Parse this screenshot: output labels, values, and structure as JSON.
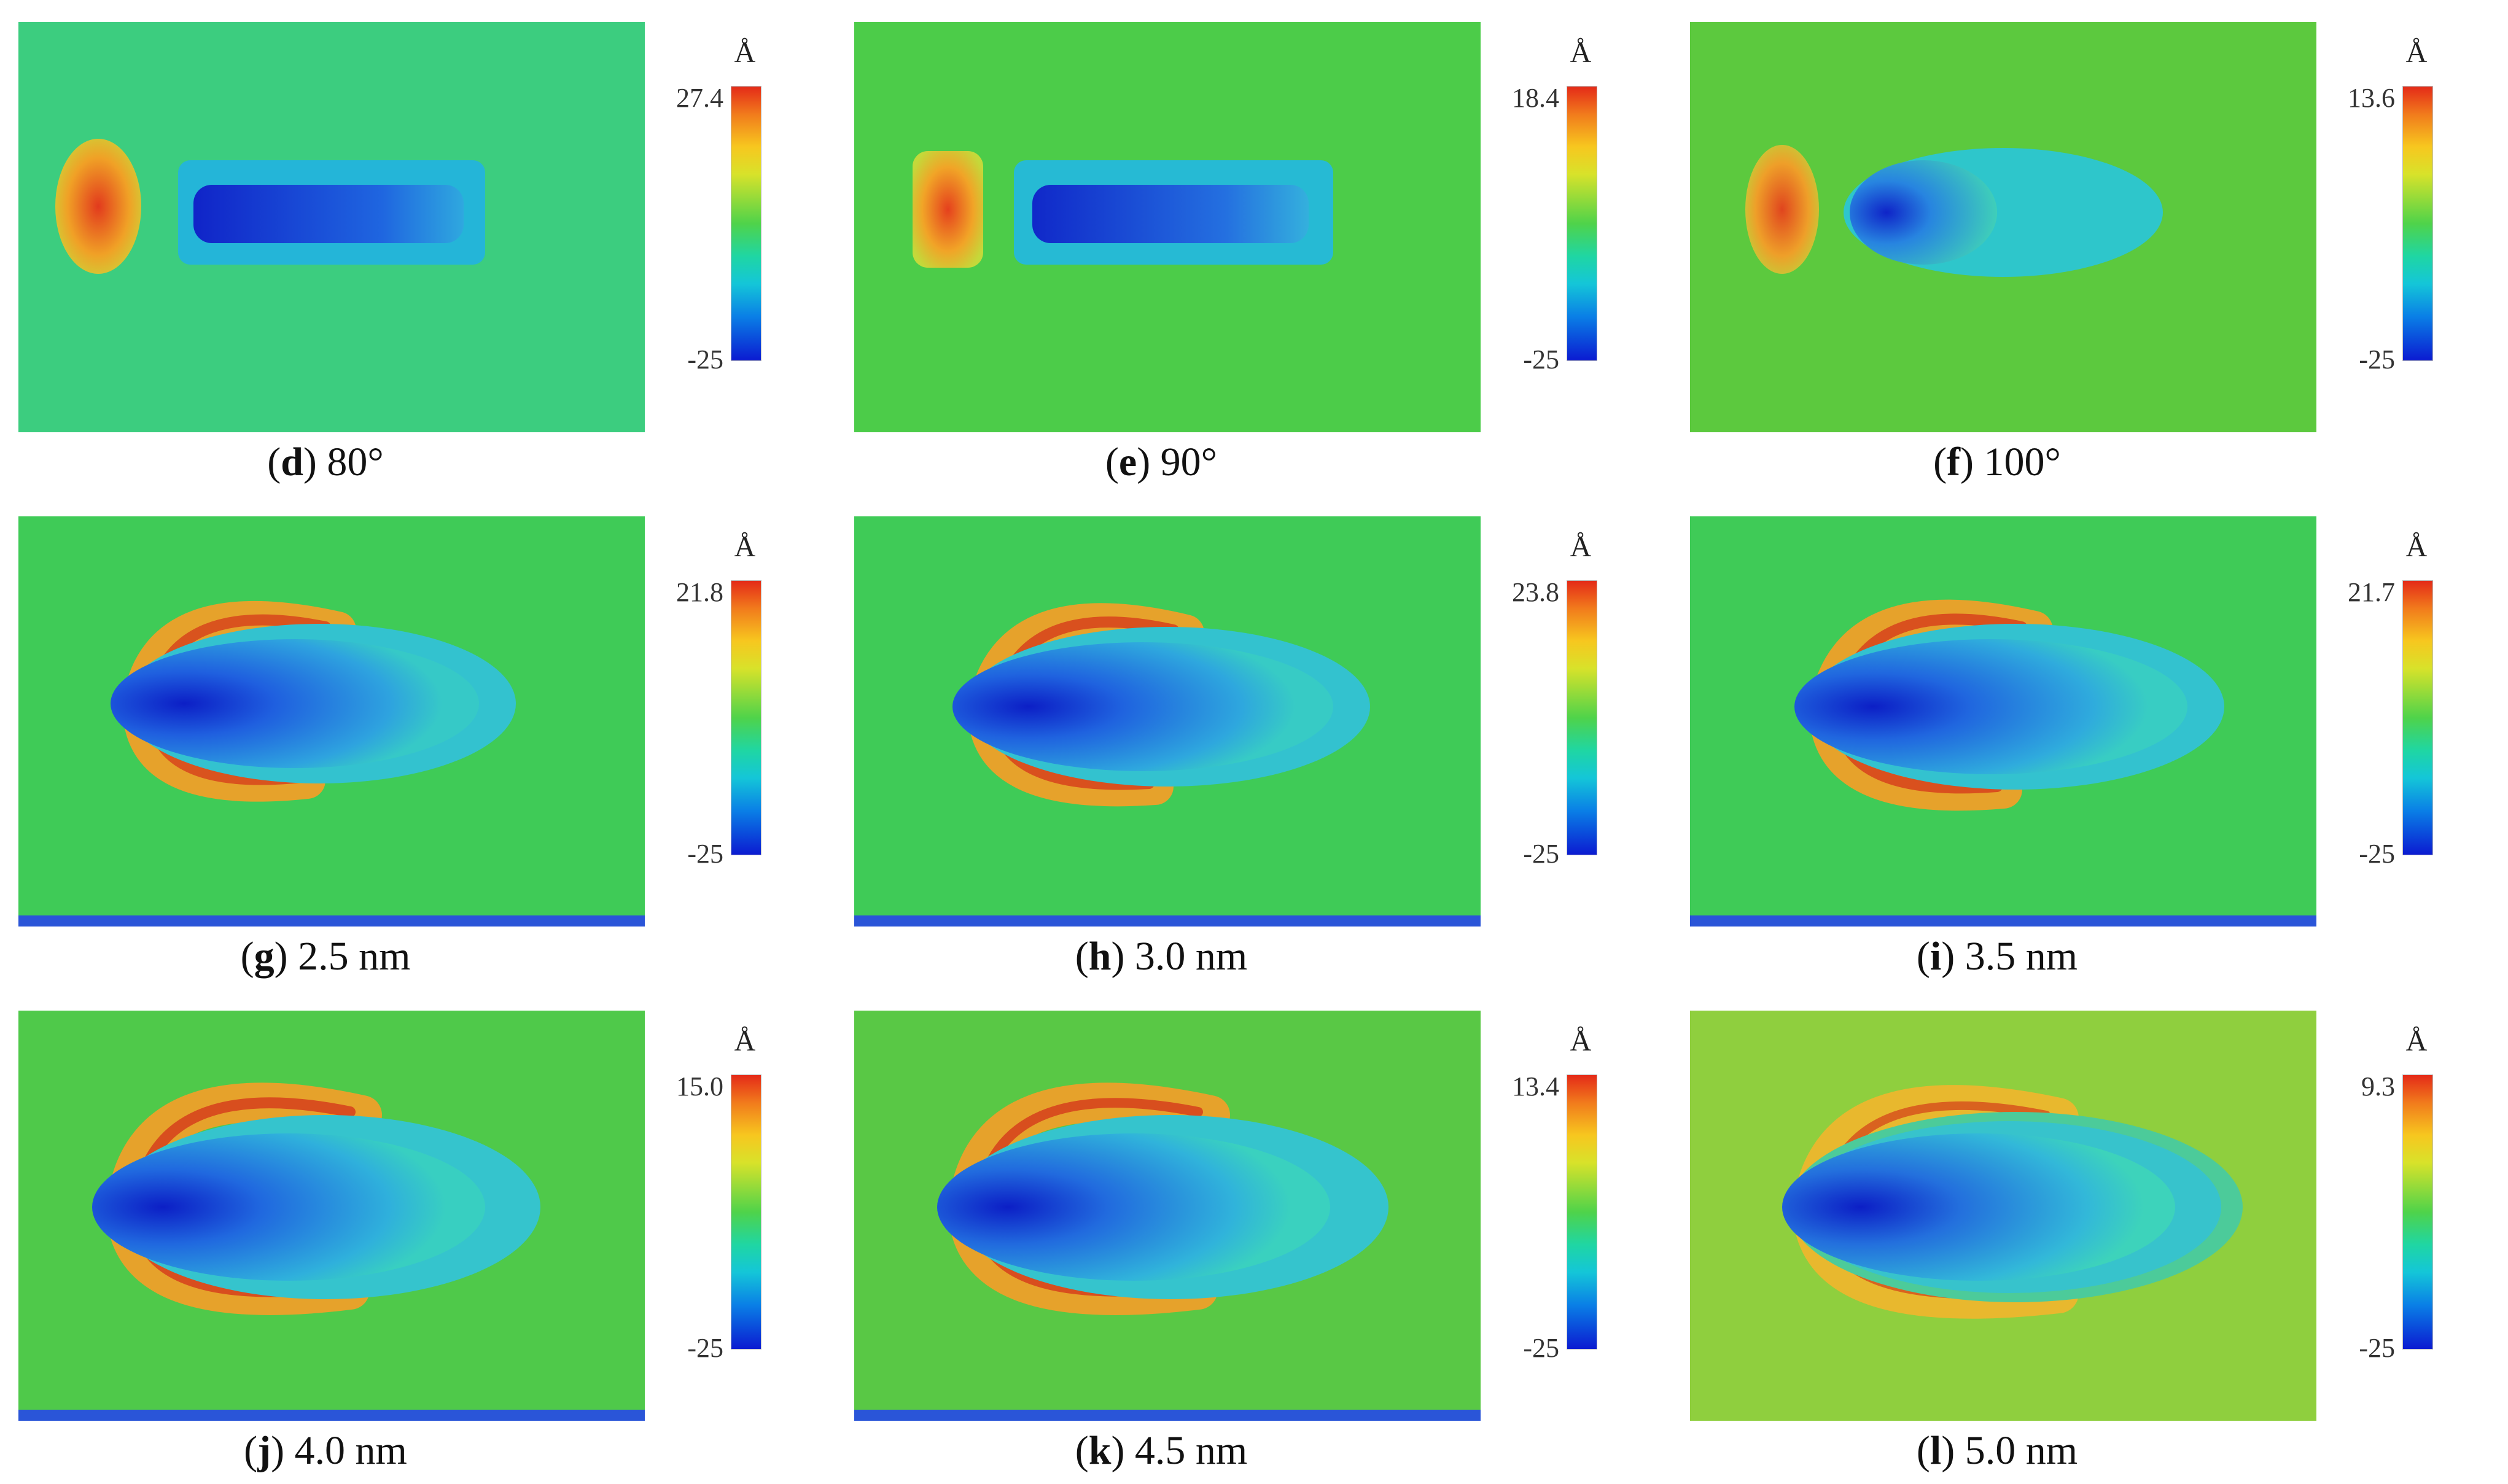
{
  "colorbar_unit": "Å",
  "colorbar_min": "-25",
  "colorbar_colors": [
    "#e42a18",
    "#f7c71f",
    "#4fd34a",
    "#14c6d8",
    "#0b1bd1"
  ],
  "panels": [
    {
      "letter": "d",
      "param": "80°",
      "max": "27.4",
      "min": "-25"
    },
    {
      "letter": "e",
      "param": "90°",
      "max": "18.4",
      "min": "-25"
    },
    {
      "letter": "f",
      "param": "100°",
      "max": "13.6",
      "min": "-25"
    },
    {
      "letter": "g",
      "param": "2.5 nm",
      "max": "21.8",
      "min": "-25"
    },
    {
      "letter": "h",
      "param": "3.0 nm",
      "max": "23.8",
      "min": "-25"
    },
    {
      "letter": "i",
      "param": "3.5 nm",
      "max": "21.7",
      "min": "-25"
    },
    {
      "letter": "j",
      "param": "4.0 nm",
      "max": "15.0",
      "min": "-25"
    },
    {
      "letter": "k",
      "param": "4.5 nm",
      "max": "13.4",
      "min": "-25"
    },
    {
      "letter": "l",
      "param": "5.0 nm",
      "max": "9.3",
      "min": "-25"
    }
  ]
}
